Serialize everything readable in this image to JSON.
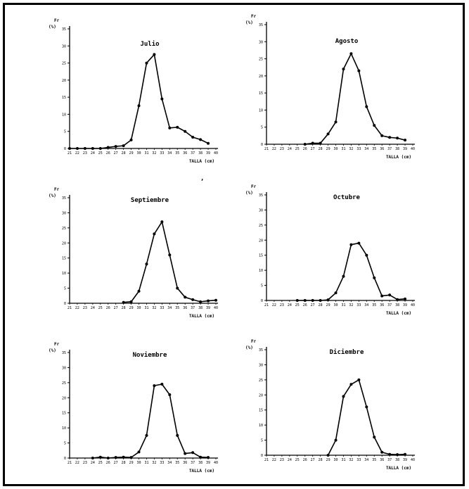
{
  "figure": {
    "stray_mark": ","
  },
  "chart_data": [
    {
      "type": "line",
      "title": "Julio",
      "ylabel_top": "Fr",
      "ylabel_unit": "(%)",
      "xlabel": "TALLA (cm)",
      "ylim": [
        0,
        35
      ],
      "y_ticks": [
        "0",
        "5",
        "10",
        "15",
        "20",
        "25",
        "30",
        "35"
      ],
      "x": [
        21,
        22,
        23,
        24,
        25,
        26,
        27,
        28,
        29,
        30,
        31,
        32,
        33,
        34,
        35,
        36,
        37,
        38,
        39,
        40
      ],
      "x_ticks": [
        "21",
        "22",
        "23",
        "24",
        "25",
        "26",
        "27",
        "28",
        "29",
        "30",
        "31",
        "32",
        "33",
        "34",
        "35",
        "36",
        "37",
        "38",
        "39",
        "40"
      ],
      "values": [
        0,
        0,
        0,
        0,
        0,
        0.3,
        0.6,
        0.8,
        2.5,
        12.5,
        25,
        27.5,
        14.5,
        6,
        6.2,
        5,
        3.3,
        2.6,
        1.5,
        null
      ]
    },
    {
      "type": "line",
      "title": "Agosto",
      "ylabel_top": "Fr",
      "ylabel_unit": "(%)",
      "xlabel": "TALLA (cm)",
      "ylim": [
        0,
        35
      ],
      "y_ticks": [
        "0",
        "5",
        "10",
        "15",
        "20",
        "25",
        "30",
        "35"
      ],
      "x": [
        21,
        22,
        23,
        24,
        25,
        26,
        27,
        28,
        29,
        30,
        31,
        32,
        33,
        34,
        35,
        36,
        37,
        38,
        39,
        40
      ],
      "x_ticks": [
        "21",
        "22",
        "23",
        "24",
        "25",
        "26",
        "27",
        "28",
        "29",
        "30",
        "31",
        "32",
        "33",
        "34",
        "35",
        "36",
        "37",
        "38",
        "39",
        "40"
      ],
      "values": [
        null,
        null,
        null,
        null,
        null,
        0,
        0.3,
        0.3,
        3,
        6.5,
        22,
        26.5,
        21.5,
        11,
        5.5,
        2.5,
        2,
        1.8,
        1.2,
        null
      ]
    },
    {
      "type": "line",
      "title": "Septiembre",
      "ylabel_top": "Fr",
      "ylabel_unit": "(%)",
      "xlabel": "TALLA (cm)",
      "ylim": [
        0,
        35
      ],
      "y_ticks": [
        "0",
        "5",
        "10",
        "15",
        "20",
        "25",
        "30",
        "35"
      ],
      "x": [
        21,
        22,
        23,
        24,
        25,
        26,
        27,
        28,
        29,
        30,
        31,
        32,
        33,
        34,
        35,
        36,
        37,
        38,
        39,
        40
      ],
      "x_ticks": [
        "21",
        "22",
        "23",
        "24",
        "25",
        "26",
        "27",
        "28",
        "29",
        "30",
        "31",
        "32",
        "33",
        "34",
        "35",
        "36",
        "37",
        "38",
        "39",
        "40"
      ],
      "values": [
        null,
        null,
        null,
        null,
        null,
        null,
        null,
        0.3,
        0.5,
        4,
        13,
        23,
        27,
        16,
        5,
        2,
        1.2,
        0.5,
        0.8,
        1
      ]
    },
    {
      "type": "line",
      "title": "Octubre",
      "ylabel_top": "Fr",
      "ylabel_unit": "(%)",
      "xlabel": "TALLA (cm)",
      "ylim": [
        0,
        35
      ],
      "y_ticks": [
        "0",
        "5",
        "10",
        "15",
        "20",
        "25",
        "30",
        "35"
      ],
      "x": [
        21,
        22,
        23,
        24,
        25,
        26,
        27,
        28,
        29,
        30,
        31,
        32,
        33,
        34,
        35,
        36,
        37,
        38,
        39,
        40
      ],
      "x_ticks": [
        "21",
        "22",
        "23",
        "24",
        "25",
        "26",
        "27",
        "28",
        "29",
        "30",
        "31",
        "32",
        "33",
        "34",
        "35",
        "36",
        "37",
        "38",
        "39",
        "40"
      ],
      "values": [
        null,
        null,
        null,
        null,
        0,
        0,
        0,
        0,
        0.2,
        2.5,
        8,
        18.5,
        19,
        15,
        7.5,
        1.5,
        1.8,
        0.3,
        0.5,
        null
      ]
    },
    {
      "type": "line",
      "title": "Noviembre",
      "ylabel_top": "Fr",
      "ylabel_unit": "(%)",
      "xlabel": "TALLA (cm)",
      "ylim": [
        0,
        35
      ],
      "y_ticks": [
        "0",
        "5",
        "10",
        "15",
        "20",
        "25",
        "30",
        "35"
      ],
      "x": [
        21,
        22,
        23,
        24,
        25,
        26,
        27,
        28,
        29,
        30,
        31,
        32,
        33,
        34,
        35,
        36,
        37,
        38,
        39,
        40
      ],
      "x_ticks": [
        "21",
        "22",
        "23",
        "24",
        "25",
        "26",
        "27",
        "28",
        "29",
        "30",
        "31",
        "32",
        "33",
        "34",
        "35",
        "36",
        "37",
        "38",
        "39",
        "40"
      ],
      "values": [
        null,
        null,
        null,
        0,
        0.3,
        0,
        0.2,
        0.3,
        0.2,
        2,
        7.5,
        24,
        24.5,
        21,
        7.5,
        1.5,
        1.8,
        0.3,
        0.2,
        null
      ]
    },
    {
      "type": "line",
      "title": "Diciembre",
      "ylabel_top": "Fr",
      "ylabel_unit": "(%)",
      "xlabel": "TALLA (cm)",
      "ylim": [
        0,
        35
      ],
      "y_ticks": [
        "0",
        "5",
        "10",
        "15",
        "20",
        "25",
        "30",
        "35"
      ],
      "x": [
        21,
        22,
        23,
        24,
        25,
        26,
        27,
        28,
        29,
        30,
        31,
        32,
        33,
        34,
        35,
        36,
        37,
        38,
        39,
        40
      ],
      "x_ticks": [
        "21",
        "22",
        "23",
        "24",
        "25",
        "26",
        "27",
        "28",
        "29",
        "30",
        "31",
        "32",
        "33",
        "34",
        "35",
        "36",
        "37",
        "38",
        "39",
        "40"
      ],
      "values": [
        null,
        null,
        null,
        null,
        null,
        null,
        null,
        null,
        0,
        5,
        19.5,
        23.5,
        25,
        16,
        6,
        1,
        0.3,
        0.2,
        0.3,
        null
      ]
    }
  ]
}
